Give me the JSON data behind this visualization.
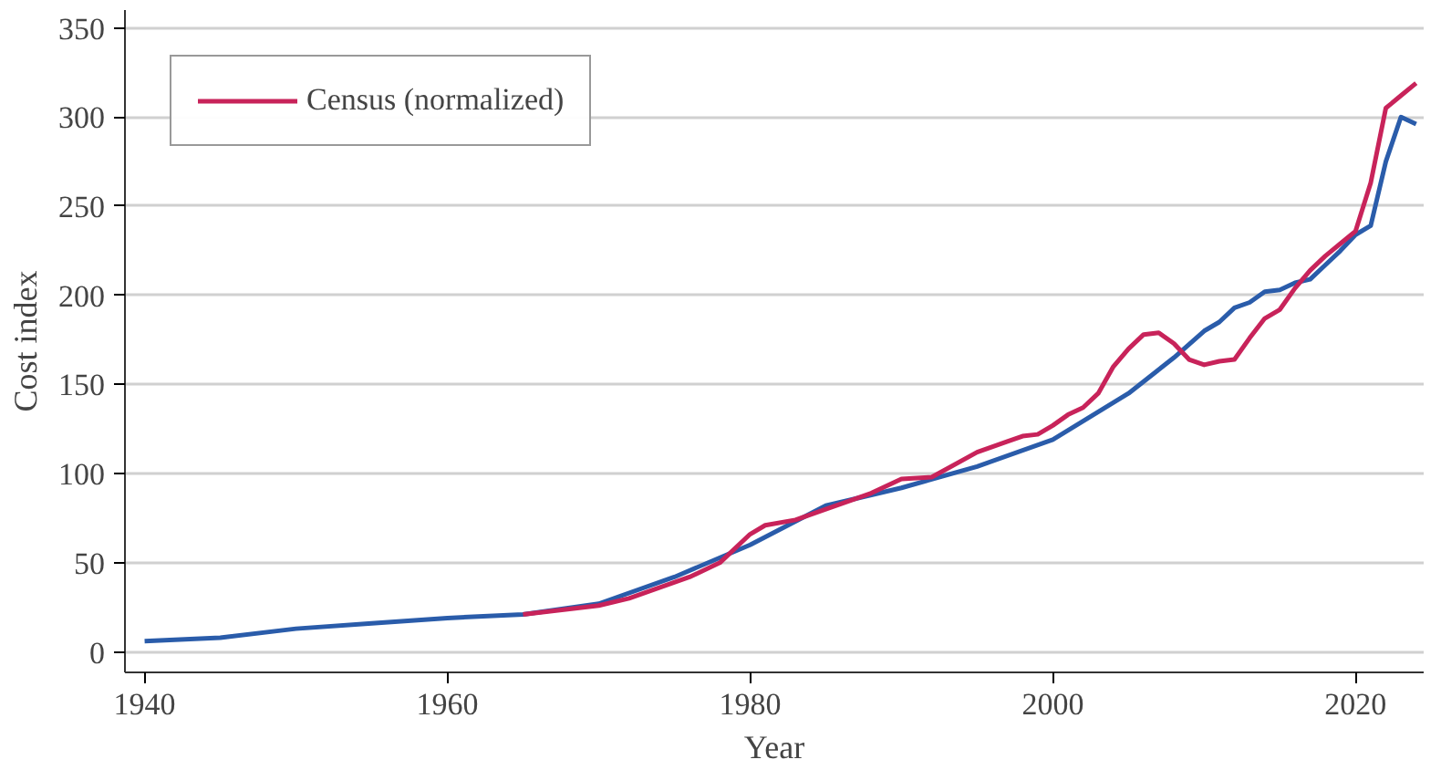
{
  "chart_data": {
    "type": "line",
    "xlabel": "Year",
    "ylabel": "Cost index",
    "xlim": [
      1938.7,
      2024.5
    ],
    "xticks": [
      1940,
      1960,
      1980,
      2000,
      2020
    ],
    "ylim": [
      -11.5,
      360
    ],
    "yticks": [
      0,
      50,
      100,
      150,
      200,
      250,
      300,
      350
    ],
    "grid": "y",
    "legend": "top left",
    "line_style": "solid",
    "series": [
      {
        "color": "#2a5caa",
        "x": [
          1940,
          1945,
          1950,
          1955,
          1960,
          1965,
          1970,
          1975,
          1980,
          1985,
          1990,
          1995,
          2000,
          2005,
          2008,
          2010,
          2011,
          2012,
          2013,
          2014,
          2015,
          2016,
          2017,
          2018,
          2019,
          2020,
          2021,
          2022,
          2023,
          2024
        ],
        "values": [
          6,
          8,
          13,
          16,
          19,
          21,
          27,
          42,
          60,
          82,
          92,
          104,
          119,
          145,
          165,
          180,
          185,
          193,
          196,
          202,
          203,
          207,
          209,
          217,
          225,
          234,
          239,
          275,
          300,
          296
        ]
      },
      {
        "name": "Census (normalized)",
        "color": "#c8235a",
        "x": [
          1965,
          1970,
          1972,
          1976,
          1978,
          1980,
          1981,
          1983,
          1985,
          1988,
          1990,
          1992,
          1995,
          1997,
          1998,
          1999,
          2000,
          2001,
          2002,
          2003,
          2004,
          2005,
          2006,
          2007,
          2008,
          2009,
          2010,
          2011,
          2012,
          2013,
          2014,
          2015,
          2016,
          2017,
          2018,
          2019,
          2020,
          2021,
          2022,
          2023,
          2024
        ],
        "values": [
          21,
          26,
          30,
          42,
          50,
          66,
          71,
          74,
          80,
          89,
          97,
          98,
          112,
          118,
          121,
          122,
          127,
          133,
          137,
          145,
          160,
          170,
          178,
          179,
          173,
          164,
          161,
          163,
          164,
          176,
          187,
          192,
          204,
          214,
          222,
          229,
          236,
          263,
          305,
          312,
          319
        ]
      }
    ]
  }
}
